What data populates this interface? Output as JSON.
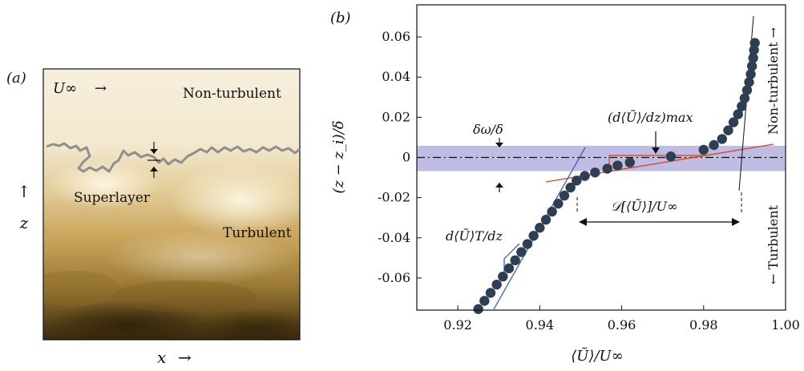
{
  "panel_a": {
    "label": "(a)",
    "u_inf": "U∞",
    "u_arrow": "→",
    "non_turbulent": "Non-turbulent",
    "superlayer": "Superlayer",
    "turbulent": "Turbulent",
    "z_label": "z",
    "z_arrow": "↑",
    "x_label": "x",
    "x_arrow": "→",
    "colors": {
      "dark": "#3a2a0c",
      "mid": "#b08a3e",
      "light": "#f5ecd6",
      "interface": "#8f8f8f"
    }
  },
  "panel_b": {
    "label": "(b)",
    "ylabel": "(z − z_i)/δ",
    "xlabel": "⟨Ũ⟩/U∞",
    "annotations": {
      "delta_omega": "δω/δ",
      "dudz_max": "(d⟨Ũ⟩/dz)max",
      "dudz_t": "d⟨Ũ⟩T/dz",
      "deficit": "𝒟[⟨Ũ⟩]/U∞",
      "non_turbulent": "Non-turbulent →",
      "turbulent": "← Turbulent"
    },
    "colors": {
      "band": "#b8b6e0",
      "markers": "#2e3f52",
      "red_line": "#d9461b",
      "blue_line": "#3a62b8",
      "axis": "#111111"
    }
  },
  "chart_data": {
    "type": "scatter",
    "title": "",
    "xlabel": "⟨Ũ⟩/U∞",
    "ylabel": "(z − z_i)/δ",
    "xlim": [
      0.91,
      1.0
    ],
    "ylim": [
      -0.076,
      0.076
    ],
    "xticks": [
      "0.92",
      "0.94",
      "0.96",
      "0.98",
      "1.00"
    ],
    "yticks": [
      "-0.06",
      "-0.04",
      "-0.02",
      "0",
      "0.02",
      "0.04",
      "0.06"
    ],
    "grid": false,
    "band_y": [
      -0.0068,
      0.0058
    ],
    "series": [
      {
        "x": [
          0.925,
          0.9265,
          0.928,
          0.9295,
          0.931,
          0.9325,
          0.934,
          0.9355,
          0.937,
          0.9385,
          0.94,
          0.9415,
          0.943,
          0.9445,
          0.946,
          0.9475,
          0.949,
          0.951,
          0.9535,
          0.9565,
          0.959,
          0.962,
          0.972,
          0.98,
          0.9825,
          0.9845,
          0.986,
          0.9873,
          0.9884,
          0.9893,
          0.99,
          0.9906,
          0.9911,
          0.9915,
          0.9918,
          0.9921,
          0.9923,
          0.9925
        ],
        "y": [
          -0.0755,
          -0.0714,
          -0.0674,
          -0.0633,
          -0.0593,
          -0.0552,
          -0.0512,
          -0.0471,
          -0.0431,
          -0.039,
          -0.035,
          -0.031,
          -0.027,
          -0.023,
          -0.019,
          -0.015,
          -0.0115,
          -0.0092,
          -0.0075,
          -0.0056,
          -0.004,
          -0.0025,
          0.0005,
          0.0038,
          0.0062,
          0.0092,
          0.0135,
          0.0175,
          0.0215,
          0.0255,
          0.0295,
          0.0335,
          0.0375,
          0.0415,
          0.0455,
          0.0495,
          0.0535,
          0.057
        ]
      }
    ]
  }
}
